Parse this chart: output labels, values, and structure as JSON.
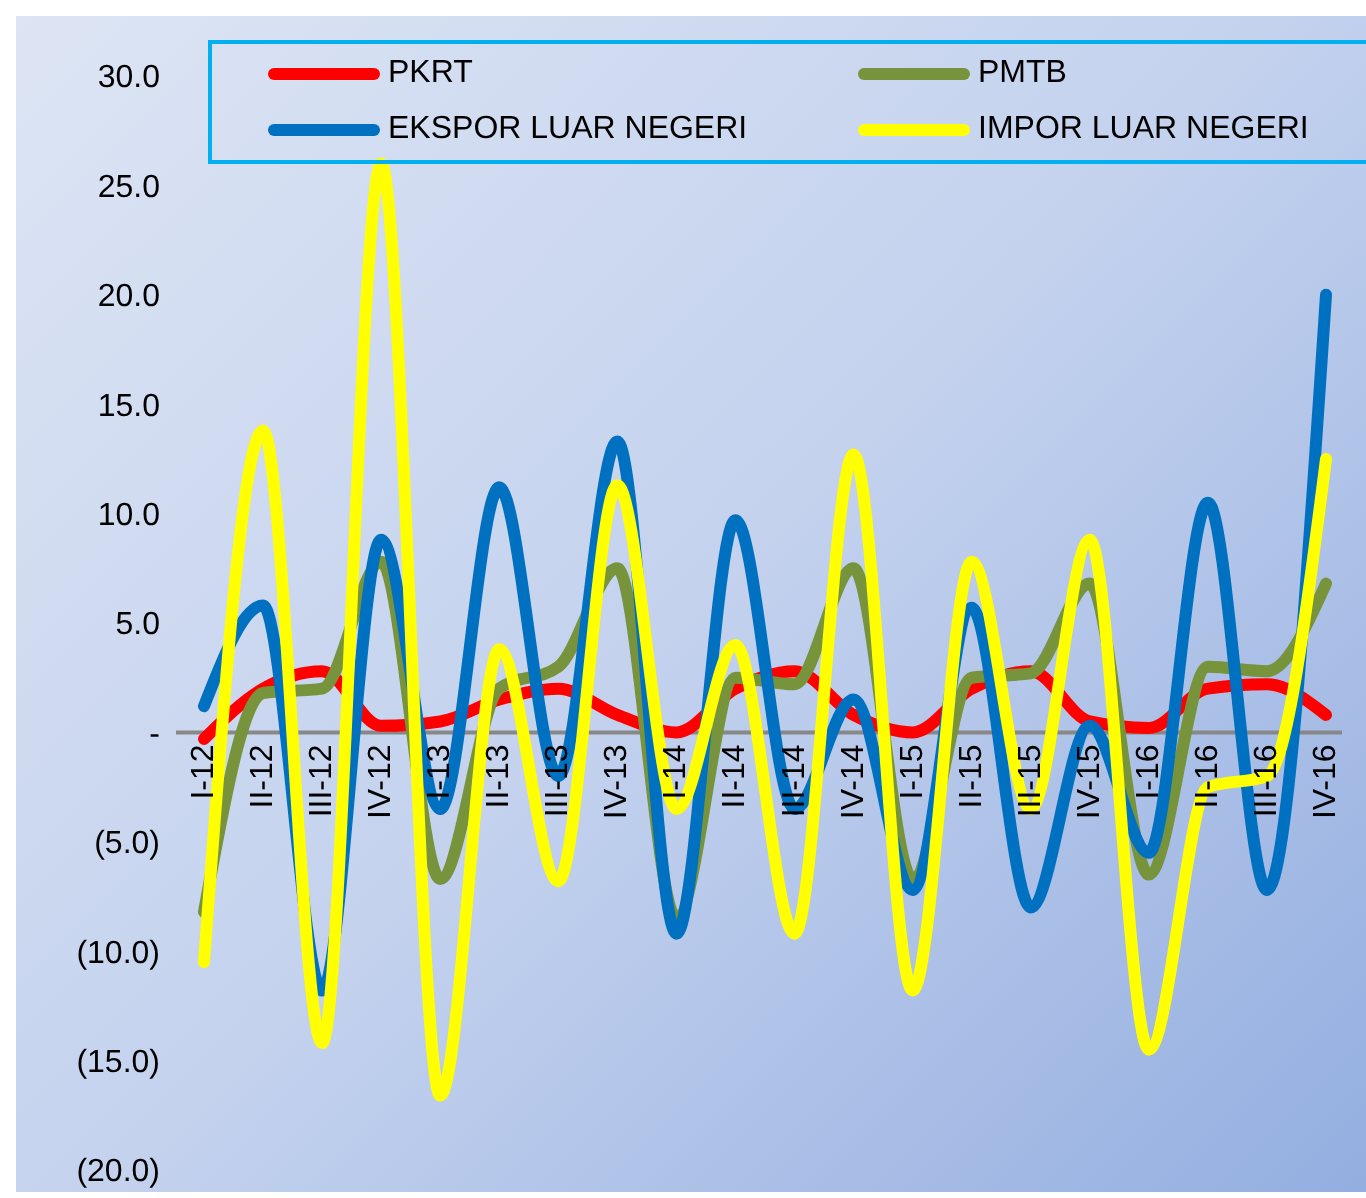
{
  "chart_data": {
    "type": "line",
    "categories": [
      "I-12",
      "II-12",
      "III-12",
      "IV-12",
      "I-13",
      "II-13",
      "III-13",
      "IV-13",
      "I-14",
      "II-14",
      "III-14",
      "IV-14",
      "I-15",
      "II-15",
      "III-15",
      "IV-15",
      "I-16",
      "II-16",
      "III-16",
      "IV-16"
    ],
    "series": [
      {
        "name": "PKRT",
        "color": "#ff0000",
        "values": [
          -0.3,
          2.0,
          2.8,
          0.3,
          0.5,
          1.5,
          2.0,
          0.8,
          0.0,
          2.0,
          2.8,
          0.8,
          0.0,
          2.0,
          2.8,
          0.5,
          0.2,
          2.0,
          2.2,
          0.8
        ]
      },
      {
        "name": "PMTB",
        "color": "#77933c",
        "values": [
          -8.2,
          1.8,
          2.0,
          7.8,
          -6.7,
          2.0,
          3.0,
          7.5,
          -8.5,
          2.5,
          2.2,
          7.5,
          -6.7,
          2.5,
          2.7,
          6.8,
          -6.5,
          3.0,
          2.8,
          6.8
        ]
      },
      {
        "name": "EKSPOR LUAR NEGERI",
        "color": "#0070c0",
        "values": [
          1.2,
          5.8,
          -11.8,
          8.8,
          -3.5,
          11.2,
          -2.0,
          13.3,
          -9.2,
          9.7,
          -3.5,
          1.5,
          -7.2,
          5.7,
          -8.0,
          0.3,
          -5.5,
          10.5,
          -7.2,
          20.0
        ]
      },
      {
        "name": "IMPOR LUAR NEGERI",
        "color": "#ffff00",
        "values": [
          -10.5,
          13.8,
          -14.2,
          26.0,
          -16.6,
          3.8,
          -6.8,
          11.3,
          -3.5,
          4.0,
          -9.2,
          12.7,
          -11.8,
          7.8,
          -3.5,
          8.8,
          -14.5,
          -2.5,
          -2.0,
          12.5
        ]
      }
    ],
    "ylim": [
      -20,
      30
    ],
    "yticks": [
      {
        "value": 30,
        "label": "30.0"
      },
      {
        "value": 25,
        "label": "25.0"
      },
      {
        "value": 20,
        "label": "20.0"
      },
      {
        "value": 15,
        "label": "15.0"
      },
      {
        "value": 10,
        "label": "10.0"
      },
      {
        "value": 5,
        "label": "5.0"
      },
      {
        "value": 0,
        "label": "-"
      },
      {
        "value": -5,
        "label": "(5.0)"
      },
      {
        "value": -10,
        "label": "(10.0)"
      },
      {
        "value": -15,
        "label": "(15.0)"
      },
      {
        "value": -20,
        "label": "(20.0)"
      }
    ],
    "grid": false,
    "legend": "top",
    "marker": "none",
    "line_style": "solid"
  }
}
